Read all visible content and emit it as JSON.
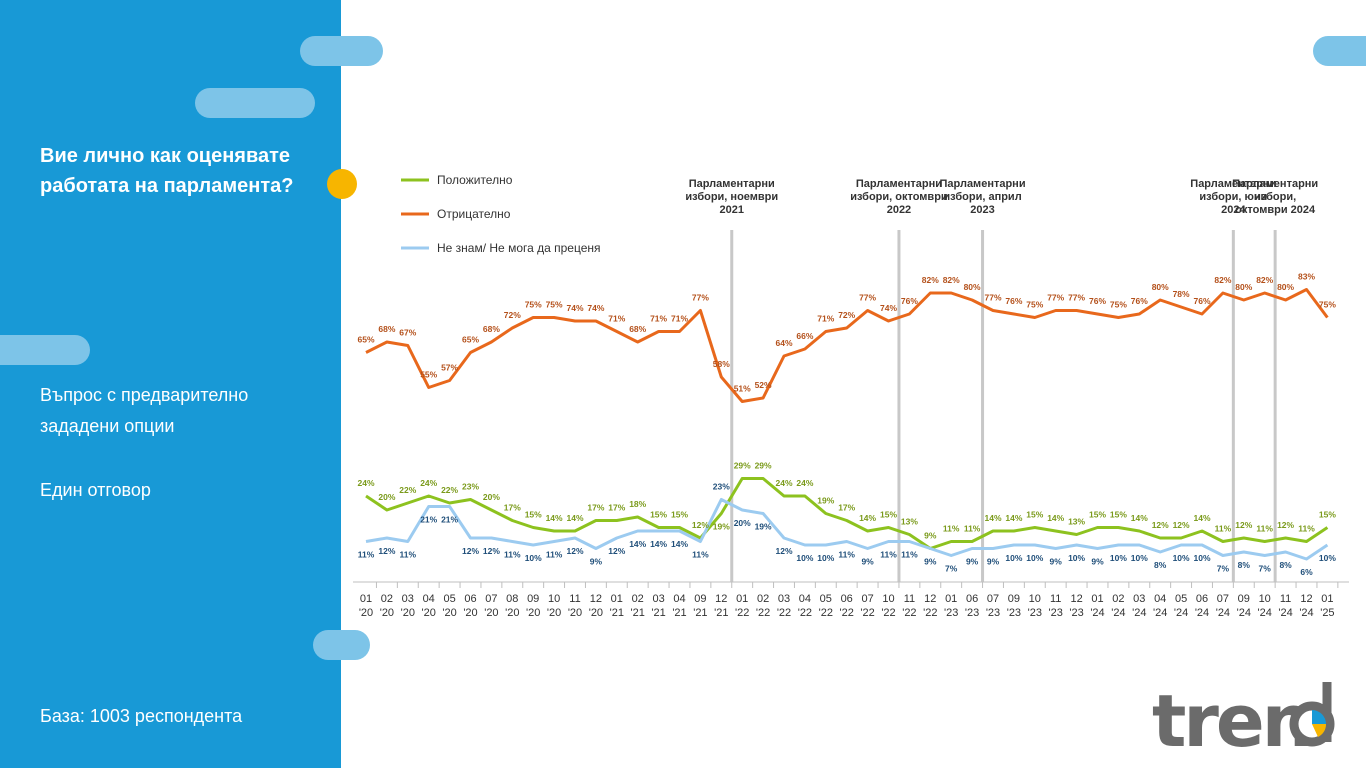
{
  "question": "Вие лично как оценявате работата на парламента?",
  "question_type": "Въпрос с предварително зададени опции",
  "answer_type": "Един отговор",
  "base": "База:  1003 респондента",
  "logo_text": "trend",
  "colors": {
    "sidebar": "#1899d6",
    "positive": "#8dc21f",
    "negative": "#e8681c",
    "dont_know": "#9ccbf0",
    "positive_label": "#7a9a1a",
    "negative_label": "#b4501a",
    "dont_know_label": "#1f4e79"
  },
  "chart_data": {
    "type": "line",
    "categories": [
      "01 '20",
      "02 '20",
      "03 '20",
      "04 '20",
      "05 '20",
      "06 '20",
      "07 '20",
      "08 '20",
      "09 '20",
      "10 '20",
      "11 '20",
      "12 '20",
      "01 '21",
      "02 '21",
      "03 '21",
      "04 '21",
      "09 '21",
      "12 '21",
      "01 '22",
      "02 '22",
      "03 '22",
      "04 '22",
      "05 '22",
      "06 '22",
      "07 '22",
      "10 '22",
      "11 '22",
      "12 '22",
      "01 '23",
      "06 '23",
      "07 '23",
      "09 '23",
      "10 '23",
      "11 '23",
      "12 '23",
      "01 '24",
      "02 '24",
      "03 '24",
      "04 '24",
      "05 '24",
      "06 '24",
      "07 '24",
      "09 '24",
      "10 '24",
      "11 '24",
      "12 '24",
      "01 '25"
    ],
    "ylim": [
      0,
      100
    ],
    "legend_position": "top-left",
    "grid": false,
    "series": [
      {
        "name": "Положително",
        "values": [
          24,
          20,
          22,
          24,
          22,
          23,
          20,
          17,
          15,
          14,
          14,
          17,
          17,
          18,
          15,
          15,
          12,
          19,
          29,
          29,
          24,
          24,
          19,
          17,
          14,
          15,
          13,
          9,
          11,
          11,
          14,
          14,
          15,
          14,
          13,
          15,
          15,
          14,
          12,
          12,
          14,
          11,
          12,
          11,
          12,
          11,
          15
        ]
      },
      {
        "name": "Отрицателно",
        "values": [
          65,
          68,
          67,
          55,
          57,
          65,
          68,
          72,
          75,
          75,
          74,
          74,
          71,
          68,
          71,
          71,
          77,
          58,
          51,
          52,
          64,
          66,
          71,
          72,
          77,
          74,
          76,
          82,
          82,
          80,
          77,
          76,
          75,
          77,
          77,
          76,
          75,
          76,
          80,
          78,
          76,
          82,
          80,
          82,
          80,
          83,
          75
        ]
      },
      {
        "name": "Не знам/ Не мога да преценя",
        "values": [
          11,
          12,
          11,
          21,
          21,
          12,
          12,
          11,
          10,
          11,
          12,
          9,
          12,
          14,
          14,
          14,
          11,
          23,
          20,
          19,
          12,
          10,
          10,
          11,
          9,
          11,
          11,
          9,
          7,
          9,
          9,
          10,
          10,
          9,
          10,
          9,
          10,
          10,
          8,
          10,
          10,
          7,
          8,
          7,
          8,
          6,
          10
        ]
      }
    ],
    "annotations": [
      {
        "after_index": 17,
        "lines": [
          "Парламентарни",
          "избори, ноември",
          "2021"
        ]
      },
      {
        "after_index": 25,
        "lines": [
          "Парламентарни",
          "избори, октомври",
          "2022"
        ]
      },
      {
        "after_index": 29,
        "lines": [
          "Парламентарни",
          "избори, април",
          "2023"
        ]
      },
      {
        "after_index": 41,
        "lines": [
          "Парламентарни",
          "избори, юни",
          "2024"
        ]
      },
      {
        "after_index": 43,
        "lines": [
          "Парламентарни",
          "избори,",
          "октомври 2024"
        ]
      }
    ]
  }
}
